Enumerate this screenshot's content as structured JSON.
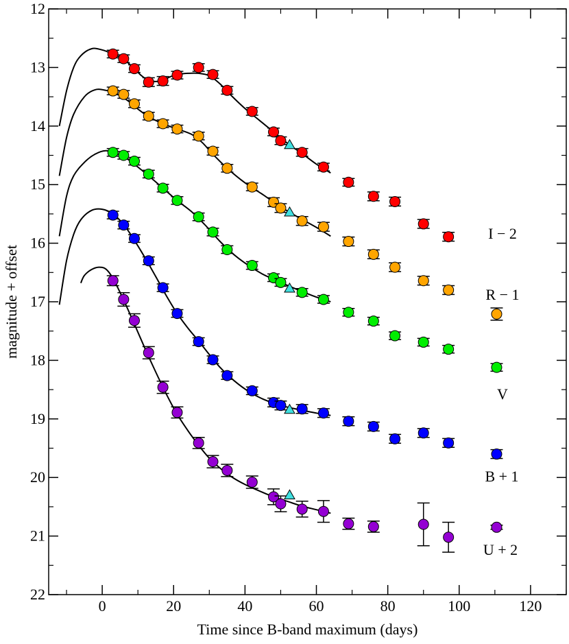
{
  "chart_data": {
    "type": "scatter",
    "title": "",
    "xlabel": "Time since B-band maximum (days)",
    "ylabel": "magnitude + offset",
    "xlim": [
      -15,
      130
    ],
    "ylim": [
      22,
      12
    ],
    "x_major_ticks": [
      0,
      20,
      40,
      60,
      80,
      100,
      120
    ],
    "x_tick_labels": [
      "0",
      "20",
      "40",
      "60",
      "80",
      "100",
      "120"
    ],
    "y_major_ticks": [
      12,
      13,
      14,
      15,
      16,
      17,
      18,
      19,
      20,
      21,
      22
    ],
    "y_tick_labels": [
      "12",
      "13",
      "14",
      "15",
      "16",
      "17",
      "18",
      "19",
      "20",
      "21",
      "22"
    ],
    "series": [
      {
        "name": "I − 2",
        "color": "#ff0000",
        "points": [
          [
            3,
            12.77,
            0.03
          ],
          [
            6,
            12.85,
            0.03
          ],
          [
            9,
            13.02,
            0.03
          ],
          [
            13,
            13.25,
            0.04
          ],
          [
            17,
            13.23,
            0.04
          ],
          [
            21,
            13.13,
            0.03
          ],
          [
            27,
            13.0,
            0.03
          ],
          [
            31,
            13.12,
            0.03
          ],
          [
            35,
            13.39,
            0.03
          ],
          [
            42,
            13.75,
            0.03
          ],
          [
            48,
            14.1,
            0.03
          ],
          [
            50,
            14.25,
            0.03
          ],
          [
            56,
            14.45,
            0.03
          ],
          [
            62,
            14.7,
            0.03
          ],
          [
            69,
            14.96,
            0.03
          ],
          [
            76,
            15.2,
            0.04
          ],
          [
            82,
            15.29,
            0.04
          ],
          [
            90,
            15.67,
            0.04
          ],
          [
            97,
            15.89,
            0.04
          ]
        ],
        "model_curve": [
          [
            -12,
            14.0
          ],
          [
            -10,
            13.4
          ],
          [
            -8,
            13.0
          ],
          [
            -6,
            12.8
          ],
          [
            -3,
            12.68
          ],
          [
            0,
            12.7
          ],
          [
            3,
            12.77
          ],
          [
            6,
            12.86
          ],
          [
            9,
            13.02
          ],
          [
            11,
            13.14
          ],
          [
            13,
            13.22
          ],
          [
            15,
            13.24
          ],
          [
            17,
            13.22
          ],
          [
            19,
            13.16
          ],
          [
            21,
            13.12
          ],
          [
            24,
            13.1
          ],
          [
            27,
            13.1
          ],
          [
            30,
            13.14
          ],
          [
            33,
            13.28
          ],
          [
            36,
            13.47
          ],
          [
            40,
            13.7
          ],
          [
            44,
            13.9
          ],
          [
            48,
            14.1
          ],
          [
            52,
            14.3
          ],
          [
            56,
            14.47
          ],
          [
            60,
            14.65
          ],
          [
            64,
            14.8
          ]
        ]
      },
      {
        "name": "R − 1",
        "color": "#ffa500",
        "points": [
          [
            3,
            13.4,
            0.03
          ],
          [
            6,
            13.46,
            0.03
          ],
          [
            9,
            13.62,
            0.03
          ],
          [
            13,
            13.83,
            0.03
          ],
          [
            17,
            13.96,
            0.03
          ],
          [
            21,
            14.05,
            0.03
          ],
          [
            27,
            14.17,
            0.03
          ],
          [
            31,
            14.43,
            0.03
          ],
          [
            35,
            14.72,
            0.03
          ],
          [
            42,
            15.04,
            0.03
          ],
          [
            48,
            15.3,
            0.04
          ],
          [
            50,
            15.4,
            0.04
          ],
          [
            56,
            15.62,
            0.04
          ],
          [
            62,
            15.72,
            0.04
          ],
          [
            69,
            15.97,
            0.04
          ],
          [
            76,
            16.19,
            0.04
          ],
          [
            82,
            16.41,
            0.04
          ],
          [
            90,
            16.64,
            0.04
          ],
          [
            97,
            16.8,
            0.04
          ],
          [
            110.5,
            17.21,
            0.07
          ]
        ],
        "model_curve": [
          [
            -12,
            14.85
          ],
          [
            -10,
            14.2
          ],
          [
            -8,
            13.8
          ],
          [
            -5,
            13.5
          ],
          [
            -2,
            13.38
          ],
          [
            1,
            13.39
          ],
          [
            4,
            13.45
          ],
          [
            7,
            13.56
          ],
          [
            10,
            13.71
          ],
          [
            13,
            13.84
          ],
          [
            17,
            13.96
          ],
          [
            21,
            14.05
          ],
          [
            25,
            14.14
          ],
          [
            28,
            14.28
          ],
          [
            31,
            14.48
          ],
          [
            35,
            14.72
          ],
          [
            40,
            14.97
          ],
          [
            45,
            15.17
          ],
          [
            50,
            15.38
          ],
          [
            55,
            15.56
          ],
          [
            60,
            15.73
          ],
          [
            64,
            15.88
          ]
        ]
      },
      {
        "name": "V",
        "color": "#00ee00",
        "points": [
          [
            3,
            14.45,
            0.03
          ],
          [
            6,
            14.5,
            0.03
          ],
          [
            9,
            14.6,
            0.03
          ],
          [
            13,
            14.82,
            0.03
          ],
          [
            17,
            15.06,
            0.03
          ],
          [
            21,
            15.27,
            0.03
          ],
          [
            27,
            15.55,
            0.03
          ],
          [
            31,
            15.81,
            0.03
          ],
          [
            35,
            16.11,
            0.03
          ],
          [
            42,
            16.38,
            0.03
          ],
          [
            48,
            16.59,
            0.03
          ],
          [
            50,
            16.67,
            0.03
          ],
          [
            56,
            16.84,
            0.03
          ],
          [
            62,
            16.96,
            0.03
          ],
          [
            69,
            17.18,
            0.03
          ],
          [
            76,
            17.33,
            0.03
          ],
          [
            82,
            17.58,
            0.03
          ],
          [
            90,
            17.69,
            0.03
          ],
          [
            97,
            17.81,
            0.03
          ],
          [
            110.5,
            18.12,
            0.03
          ]
        ],
        "model_curve": [
          [
            -12,
            15.88
          ],
          [
            -10,
            15.2
          ],
          [
            -8,
            14.85
          ],
          [
            -5,
            14.62
          ],
          [
            -2,
            14.48
          ],
          [
            1,
            14.42
          ],
          [
            4,
            14.47
          ],
          [
            7,
            14.56
          ],
          [
            10,
            14.7
          ],
          [
            13,
            14.85
          ],
          [
            17,
            15.06
          ],
          [
            21,
            15.27
          ],
          [
            25,
            15.46
          ],
          [
            29,
            15.7
          ],
          [
            33,
            15.97
          ],
          [
            37,
            16.2
          ],
          [
            41,
            16.38
          ],
          [
            45,
            16.53
          ],
          [
            50,
            16.67
          ],
          [
            55,
            16.8
          ],
          [
            60,
            16.92
          ],
          [
            64,
            17.0
          ]
        ]
      },
      {
        "name": "B + 1",
        "color": "#0000ff",
        "points": [
          [
            3,
            15.52,
            0.03
          ],
          [
            6,
            15.69,
            0.03
          ],
          [
            9,
            15.92,
            0.03
          ],
          [
            13,
            16.3,
            0.03
          ],
          [
            17,
            16.76,
            0.03
          ],
          [
            21,
            17.2,
            0.03
          ],
          [
            27,
            17.68,
            0.03
          ],
          [
            31,
            17.99,
            0.03
          ],
          [
            35,
            18.26,
            0.03
          ],
          [
            42,
            18.52,
            0.03
          ],
          [
            48,
            18.72,
            0.04
          ],
          [
            50,
            18.77,
            0.04
          ],
          [
            56,
            18.83,
            0.04
          ],
          [
            62,
            18.9,
            0.04
          ],
          [
            69,
            19.04,
            0.04
          ],
          [
            76,
            19.13,
            0.04
          ],
          [
            82,
            19.34,
            0.04
          ],
          [
            90,
            19.24,
            0.04
          ],
          [
            97,
            19.41,
            0.04
          ],
          [
            110.5,
            19.6,
            0.04
          ]
        ],
        "model_curve": [
          [
            -12,
            17.05
          ],
          [
            -10,
            16.3
          ],
          [
            -8,
            15.85
          ],
          [
            -6,
            15.6
          ],
          [
            -3,
            15.44
          ],
          [
            0,
            15.42
          ],
          [
            3,
            15.5
          ],
          [
            6,
            15.68
          ],
          [
            9,
            15.95
          ],
          [
            12,
            16.25
          ],
          [
            15,
            16.57
          ],
          [
            18,
            16.9
          ],
          [
            21,
            17.2
          ],
          [
            24,
            17.45
          ],
          [
            27,
            17.67
          ],
          [
            30,
            17.9
          ],
          [
            33,
            18.12
          ],
          [
            37,
            18.35
          ],
          [
            41,
            18.53
          ],
          [
            45,
            18.66
          ],
          [
            50,
            18.77
          ],
          [
            55,
            18.84
          ],
          [
            60,
            18.9
          ],
          [
            64,
            18.94
          ]
        ]
      },
      {
        "name": "U + 2",
        "color": "#9400d3",
        "points": [
          [
            3,
            16.64,
            0.05
          ],
          [
            6,
            16.96,
            0.08
          ],
          [
            9,
            17.32,
            0.08
          ],
          [
            13,
            17.87,
            0.07
          ],
          [
            17,
            18.46,
            0.07
          ],
          [
            21,
            18.89,
            0.06
          ],
          [
            27,
            19.41,
            0.06
          ],
          [
            31,
            19.73,
            0.07
          ],
          [
            35,
            19.88,
            0.07
          ],
          [
            42,
            20.08,
            0.07
          ],
          [
            48,
            20.33,
            0.1
          ],
          [
            50,
            20.45,
            0.1
          ],
          [
            56,
            20.54,
            0.1
          ],
          [
            62,
            20.58,
            0.15
          ],
          [
            69,
            20.79,
            0.06
          ],
          [
            76,
            20.84,
            0.06
          ],
          [
            90,
            20.8,
            0.33
          ],
          [
            97,
            21.02,
            0.22
          ],
          [
            110.5,
            20.85,
            0.0
          ]
        ],
        "model_curve": [
          [
            -6,
            16.68
          ],
          [
            -5,
            16.55
          ],
          [
            -3,
            16.45
          ],
          [
            -1,
            16.41
          ],
          [
            1,
            16.44
          ],
          [
            3,
            16.6
          ],
          [
            6,
            16.97
          ],
          [
            9,
            17.38
          ],
          [
            12,
            17.8
          ],
          [
            15,
            18.2
          ],
          [
            18,
            18.58
          ],
          [
            21,
            18.92
          ],
          [
            24,
            19.2
          ],
          [
            27,
            19.45
          ],
          [
            30,
            19.67
          ],
          [
            33,
            19.84
          ],
          [
            36,
            19.98
          ],
          [
            40,
            20.12
          ],
          [
            44,
            20.23
          ],
          [
            48,
            20.33
          ],
          [
            52,
            20.41
          ],
          [
            56,
            20.49
          ],
          [
            60,
            20.55
          ],
          [
            64,
            20.61
          ]
        ]
      },
      {
        "name": "triangles",
        "color": "#40e0e0",
        "marker": "triangle",
        "points": [
          [
            52.5,
            14.32,
            0
          ],
          [
            52.5,
            15.47,
            0
          ],
          [
            52.5,
            16.77,
            0
          ],
          [
            52.5,
            18.84,
            0
          ],
          [
            52.5,
            20.3,
            0
          ]
        ]
      }
    ],
    "legend": [
      {
        "label": "I − 2",
        "color": "#ff0000",
        "marker_x": 110.5,
        "marker_y": 16.2
      },
      {
        "label": "R − 1",
        "color": "#ffa500",
        "marker_x": 110.5,
        "marker_y": 17.21
      },
      {
        "label": "V",
        "color": "#00ee00",
        "marker_x": 110.5,
        "marker_y": 18.12
      },
      {
        "label": "B + 1",
        "color": "#0000ff",
        "marker_x": 110.5,
        "marker_y": 19.6
      },
      {
        "label": "U + 2",
        "color": "#9400d3",
        "marker_x": 110.5,
        "marker_y": 20.85
      }
    ]
  }
}
